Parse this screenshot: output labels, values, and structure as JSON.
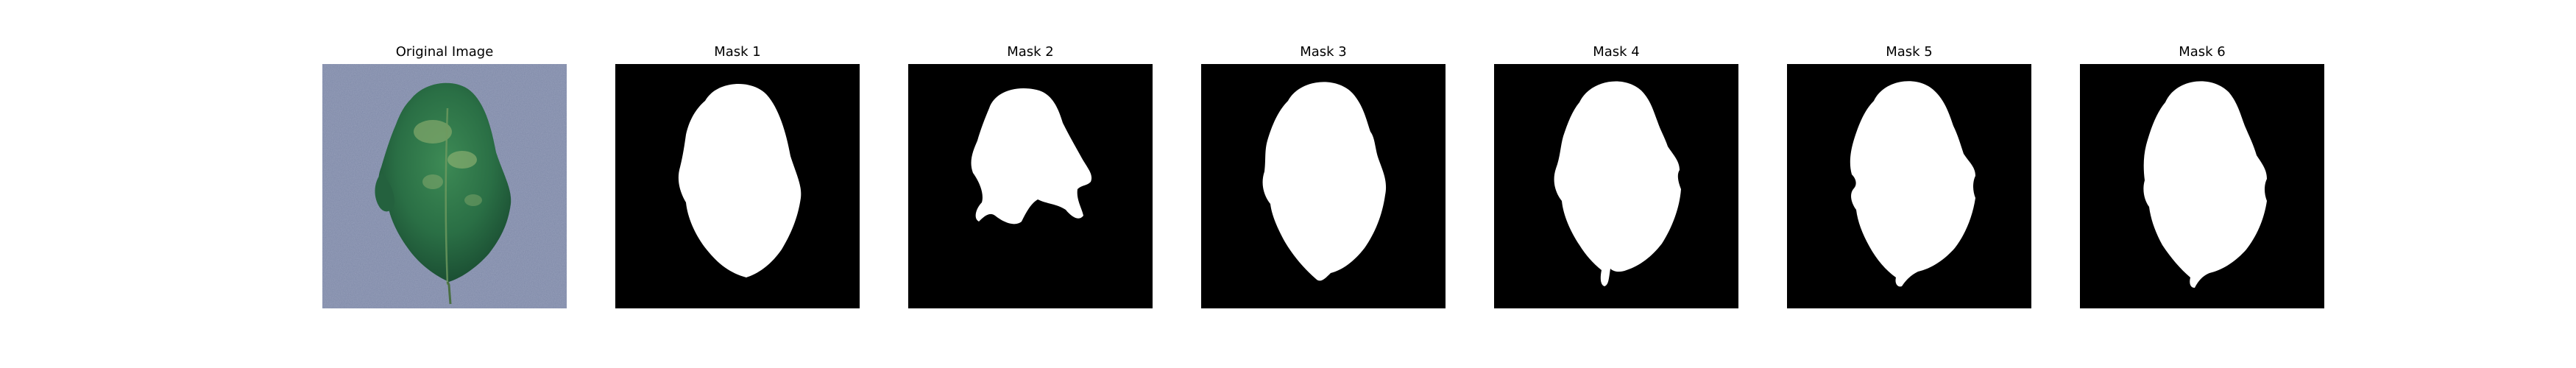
{
  "figure": {
    "panels": [
      {
        "title": "Original Image",
        "kind": "photo",
        "image_description": "green-tomato-leaf-on-blue-gray-textured-background"
      },
      {
        "title": "Mask 1",
        "kind": "mask"
      },
      {
        "title": "Mask 2",
        "kind": "mask"
      },
      {
        "title": "Mask 3",
        "kind": "mask"
      },
      {
        "title": "Mask 4",
        "kind": "mask"
      },
      {
        "title": "Mask 5",
        "kind": "mask"
      },
      {
        "title": "Mask 6",
        "kind": "mask"
      }
    ]
  },
  "colors": {
    "mask_background": "#000000",
    "mask_foreground": "#ffffff",
    "photo_background": "#7f8aa8",
    "leaf_dark": "#1e5a38",
    "leaf_mid": "#2f7a4a",
    "leaf_light": "#7fa56a"
  }
}
